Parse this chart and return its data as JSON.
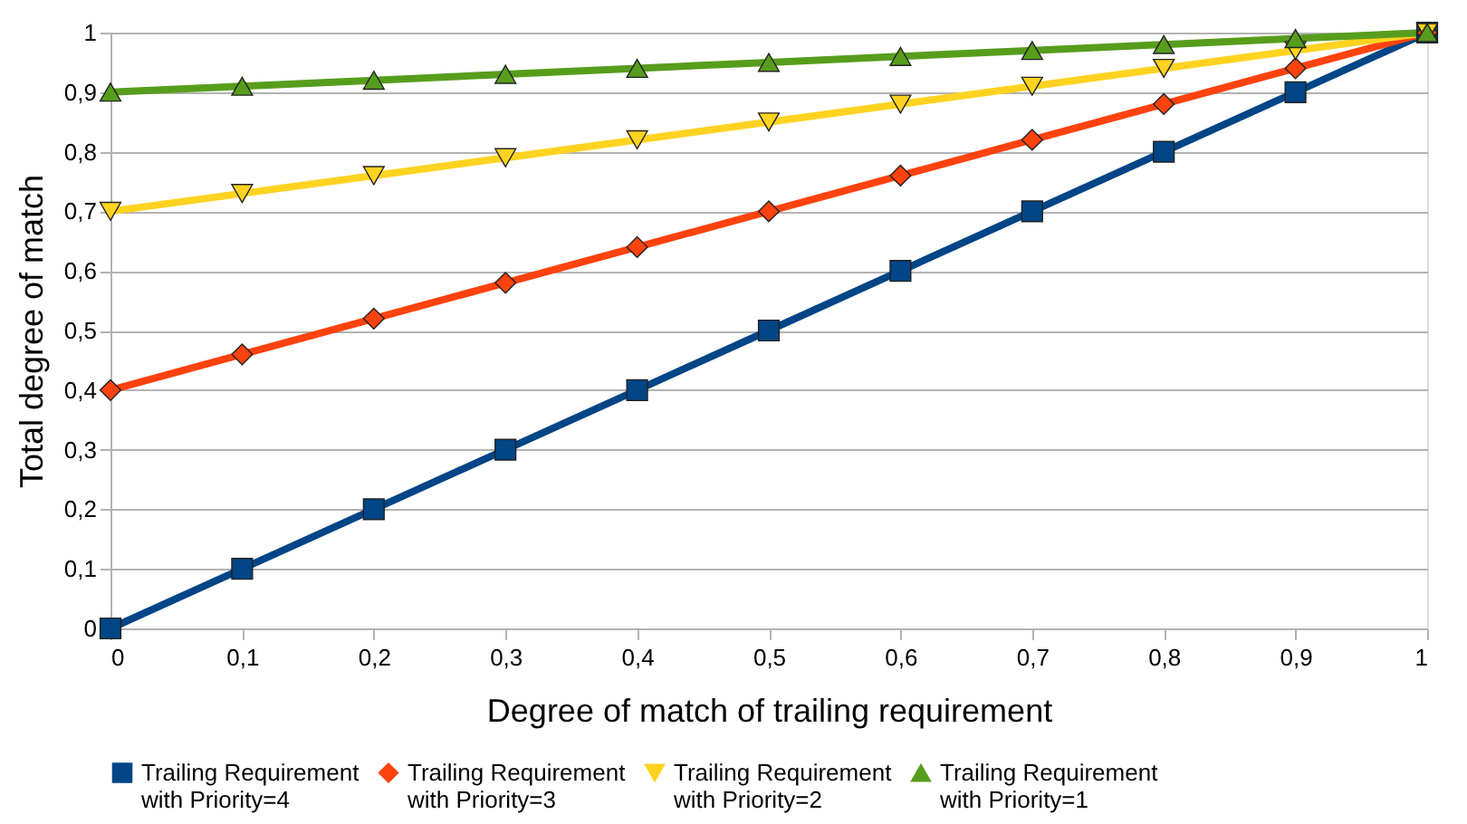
{
  "chart_data": {
    "type": "line",
    "xlabel": "Degree of match of trailing requirement",
    "ylabel": "Total degree of match",
    "x": [
      0,
      0.1,
      0.2,
      0.3,
      0.4,
      0.5,
      0.6,
      0.7,
      0.8,
      0.9,
      1
    ],
    "series": [
      {
        "name": "Trailing Requirement with Priority=4",
        "color": "#004586",
        "marker": "square",
        "values": [
          0,
          0.1,
          0.2,
          0.3,
          0.4,
          0.5,
          0.6,
          0.7,
          0.8,
          0.9,
          1
        ]
      },
      {
        "name": "Trailing Requirement with Priority=3",
        "color": "#ff420e",
        "marker": "diamond",
        "values": [
          0.4,
          0.46,
          0.52,
          0.58,
          0.64,
          0.7,
          0.76,
          0.82,
          0.88,
          0.94,
          1
        ]
      },
      {
        "name": "Trailing Requirement with Priority=2",
        "color": "#ffd320",
        "marker": "triangle-down",
        "values": [
          0.7,
          0.73,
          0.76,
          0.79,
          0.82,
          0.85,
          0.88,
          0.91,
          0.94,
          0.97,
          1
        ]
      },
      {
        "name": "Trailing Requirement with Priority=1",
        "color": "#579d1c",
        "marker": "triangle-up",
        "values": [
          0.9,
          0.91,
          0.92,
          0.93,
          0.94,
          0.95,
          0.96,
          0.97,
          0.98,
          0.99,
          1
        ]
      }
    ],
    "xlim": [
      0,
      1
    ],
    "ylim": [
      0,
      1
    ],
    "xticks": [
      0,
      {
        "value": 0.1,
        "label": "0,1"
      },
      {
        "value": 0.2,
        "label": "0,2"
      },
      {
        "value": 0.3,
        "label": "0,3"
      },
      {
        "value": 0.4,
        "label": "0,4"
      },
      {
        "value": 0.5,
        "label": "0,5"
      },
      {
        "value": 0.6,
        "label": "0,6"
      },
      {
        "value": 0.7,
        "label": "0,7"
      },
      {
        "value": 0.8,
        "label": "0,8"
      },
      {
        "value": 0.9,
        "label": "0,9"
      },
      1
    ],
    "yticks": [
      0,
      {
        "value": 0.1,
        "label": "0,1"
      },
      {
        "value": 0.2,
        "label": "0,2"
      },
      {
        "value": 0.3,
        "label": "0,3"
      },
      {
        "value": 0.4,
        "label": "0,4"
      },
      {
        "value": 0.5,
        "label": "0,5"
      },
      {
        "value": 0.6,
        "label": "0,6"
      },
      {
        "value": 0.7,
        "label": "0,7"
      },
      {
        "value": 0.8,
        "label": "0,8"
      },
      {
        "value": 0.9,
        "label": "0,9"
      },
      1
    ],
    "grid": "y",
    "legend": "bottom",
    "line_style": "solid"
  }
}
